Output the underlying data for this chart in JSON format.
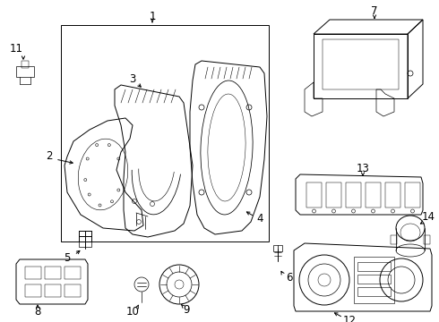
{
  "bg_color": "#ffffff",
  "line_color": "#000000",
  "font_size_label": 8.5,
  "line_width": 0.7
}
